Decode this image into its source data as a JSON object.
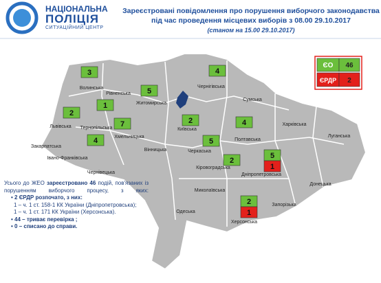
{
  "header": {
    "logo": [
      "НАЦІОНАЛЬНА",
      "ПОЛІЦІЯ",
      "СИТУАЦІЙНИЙ ЦЕНТР"
    ],
    "title": [
      "Зареєстровані повідомлення про порушення виборчого законодавства",
      "під час проведення місцевих виборів з 08.00 29.10.2017",
      "(станом на 15.00 29.10.2017)"
    ]
  },
  "legend": {
    "eo_label": "ЄО",
    "eo_total": "46",
    "erdr_label": "ЄРДР",
    "erdr_total": "2"
  },
  "regions": [
    {
      "name": "Волинська",
      "eo": "3"
    },
    {
      "name": "Рівненська",
      "eo": "1"
    },
    {
      "name": "Житомирська",
      "eo": "5"
    },
    {
      "name": "Чернігівська",
      "eo": "4"
    },
    {
      "name": "Сумська"
    },
    {
      "name": "Львівська",
      "eo": "2"
    },
    {
      "name": "Тернопільська",
      "eo": "4"
    },
    {
      "name": "Хмельницька",
      "eo": "7"
    },
    {
      "name": "Київська",
      "eo": "2"
    },
    {
      "name": "Харківська"
    },
    {
      "name": "Полтавська",
      "eo": "4"
    },
    {
      "name": "Луганська"
    },
    {
      "name": "Закарпатська"
    },
    {
      "name": "Івано-Франківська"
    },
    {
      "name": "Чернівецька"
    },
    {
      "name": "Вінницька"
    },
    {
      "name": "Черкаська",
      "eo": "5"
    },
    {
      "name": "Кіровоградська",
      "eo": "2"
    },
    {
      "name": "Дніпропетровська",
      "eo": "5",
      "erdr": "1"
    },
    {
      "name": "Донецька"
    },
    {
      "name": "Миколаївська"
    },
    {
      "name": "Запорізька"
    },
    {
      "name": "Одеська"
    },
    {
      "name": "Херсонська",
      "eo": "2",
      "erdr": "1"
    }
  ],
  "summary": {
    "intro": [
      "Усього до ЖЕО",
      "зареєстровано",
      "46",
      "подій, пов'язаних із порушенням виборчого процесу, з яких:"
    ],
    "items": [
      "• 2 ЄРДР розпочато, з них:",
      "1 – ч. 1 ст. 158-1 КК України (Дніпропетровська);",
      "1 – ч. 1 ст. 171 КК України (Херсонська).",
      "•  44 – триває перевірка ;",
      "•  0 – списано до справи."
    ]
  }
}
